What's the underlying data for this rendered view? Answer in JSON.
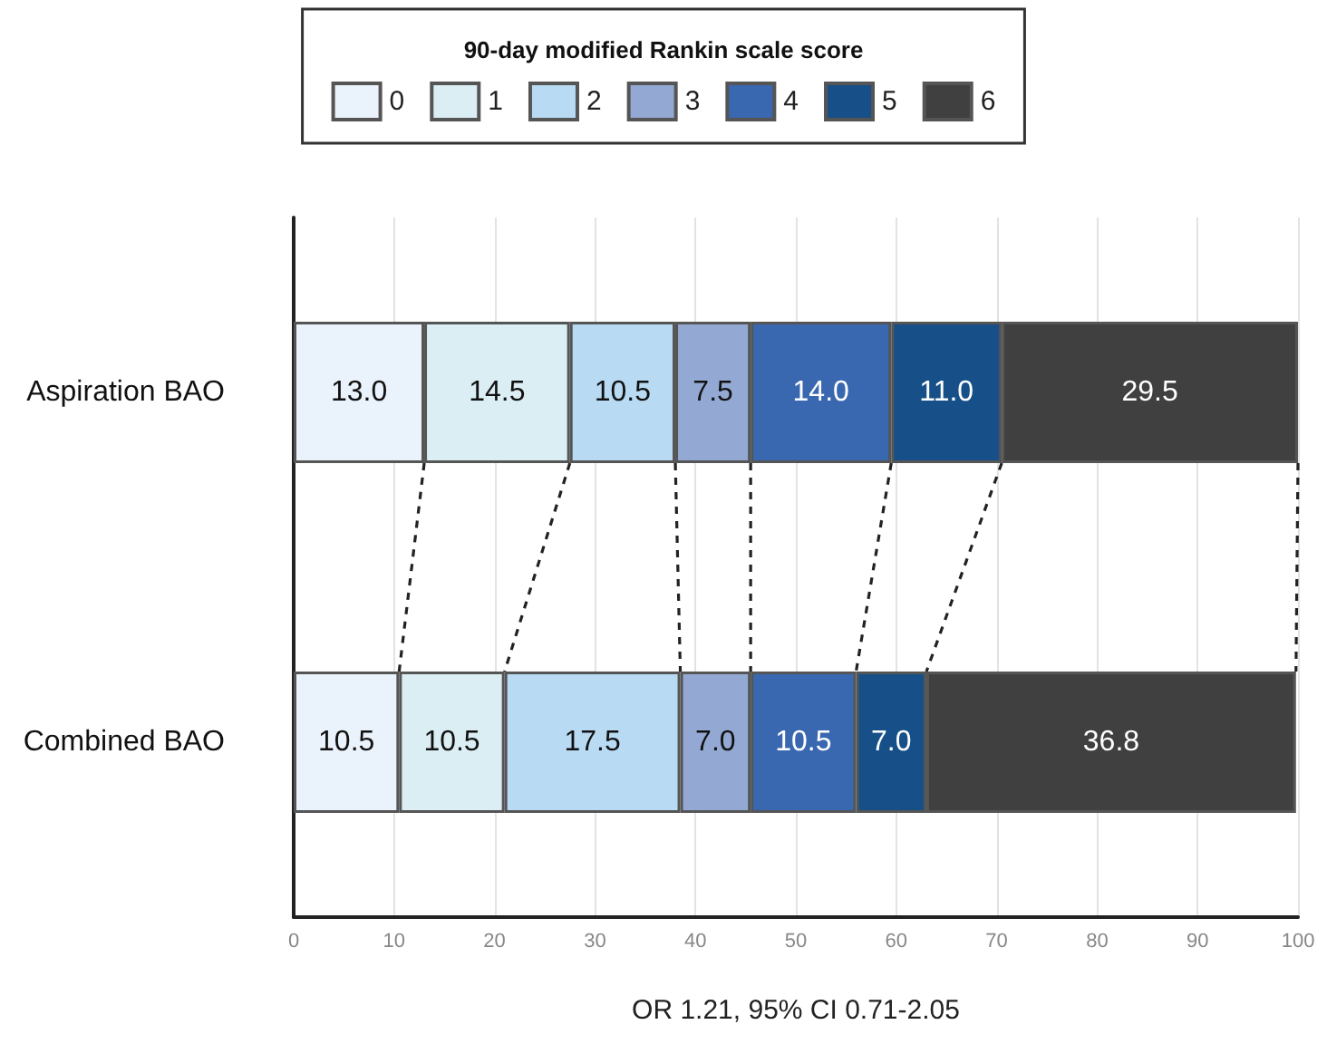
{
  "chart_data": {
    "type": "bar",
    "orientation": "horizontal",
    "stacked": true,
    "legend_title": "90-day modified Rankin scale score",
    "legend": "top",
    "xlabel": "OR 1.21, 95% CI 0.71-2.05",
    "categories": [
      "Aspiration BAO",
      "Combined BAO"
    ],
    "series": [
      {
        "name": "0",
        "color": "#eaf2fb",
        "values": [
          13.0,
          10.5
        ],
        "value_labels": [
          "13.0",
          "10.5"
        ]
      },
      {
        "name": "1",
        "color": "#daeef3",
        "values": [
          14.5,
          10.5
        ],
        "value_labels": [
          "14.5",
          "10.5"
        ]
      },
      {
        "name": "2",
        "color": "#b8daf3",
        "values": [
          10.5,
          17.5
        ],
        "value_labels": [
          "10.5",
          "17.5"
        ]
      },
      {
        "name": "3",
        "color": "#93a9d3",
        "values": [
          7.5,
          7.0
        ],
        "value_labels": [
          "7.5",
          "7.0"
        ]
      },
      {
        "name": "4",
        "color": "#3a68b0",
        "values": [
          14.0,
          10.5
        ],
        "value_labels": [
          "14.0",
          "10.5"
        ]
      },
      {
        "name": "5",
        "color": "#175089",
        "values": [
          11.0,
          7.0
        ],
        "value_labels": [
          "11.0",
          "7.0"
        ]
      },
      {
        "name": "6",
        "color": "#404040",
        "values": [
          29.5,
          36.8
        ],
        "value_labels": [
          "29.5",
          "36.8"
        ]
      }
    ],
    "xlim": [
      0,
      100
    ],
    "xticks": [
      0,
      10,
      20,
      30,
      40,
      50,
      60,
      70,
      80,
      90,
      100
    ],
    "grid": "x"
  }
}
